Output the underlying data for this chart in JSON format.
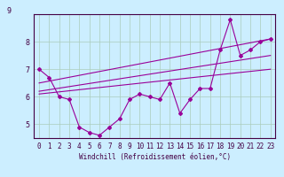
{
  "xlabel": "Windchill (Refroidissement éolien,°C)",
  "bg_color": "#cceeff",
  "line_color": "#990099",
  "grid_color": "#aaccbb",
  "xlim": [
    -0.5,
    23.5
  ],
  "ylim": [
    4.5,
    9.0
  ],
  "xticks": [
    0,
    1,
    2,
    3,
    4,
    5,
    6,
    7,
    8,
    9,
    10,
    11,
    12,
    13,
    14,
    15,
    16,
    17,
    18,
    19,
    20,
    21,
    22,
    23
  ],
  "yticks": [
    5,
    6,
    7,
    8
  ],
  "main_data": [
    7.0,
    6.7,
    6.0,
    5.9,
    4.9,
    4.7,
    4.6,
    4.9,
    5.2,
    5.9,
    6.1,
    6.0,
    5.9,
    6.5,
    5.4,
    5.9,
    6.3,
    6.3,
    7.7,
    8.8,
    7.5,
    7.7,
    8.0,
    8.1
  ],
  "trend1_x": [
    0,
    23
  ],
  "trend1_y": [
    6.1,
    7.0
  ],
  "trend2_x": [
    0,
    23
  ],
  "trend2_y": [
    6.2,
    7.5
  ],
  "trend3_x": [
    0,
    23
  ],
  "trend3_y": [
    6.5,
    8.1
  ],
  "xlabel_fontsize": 5.5,
  "tick_fontsize": 5.5,
  "ytick_fontsize": 6
}
